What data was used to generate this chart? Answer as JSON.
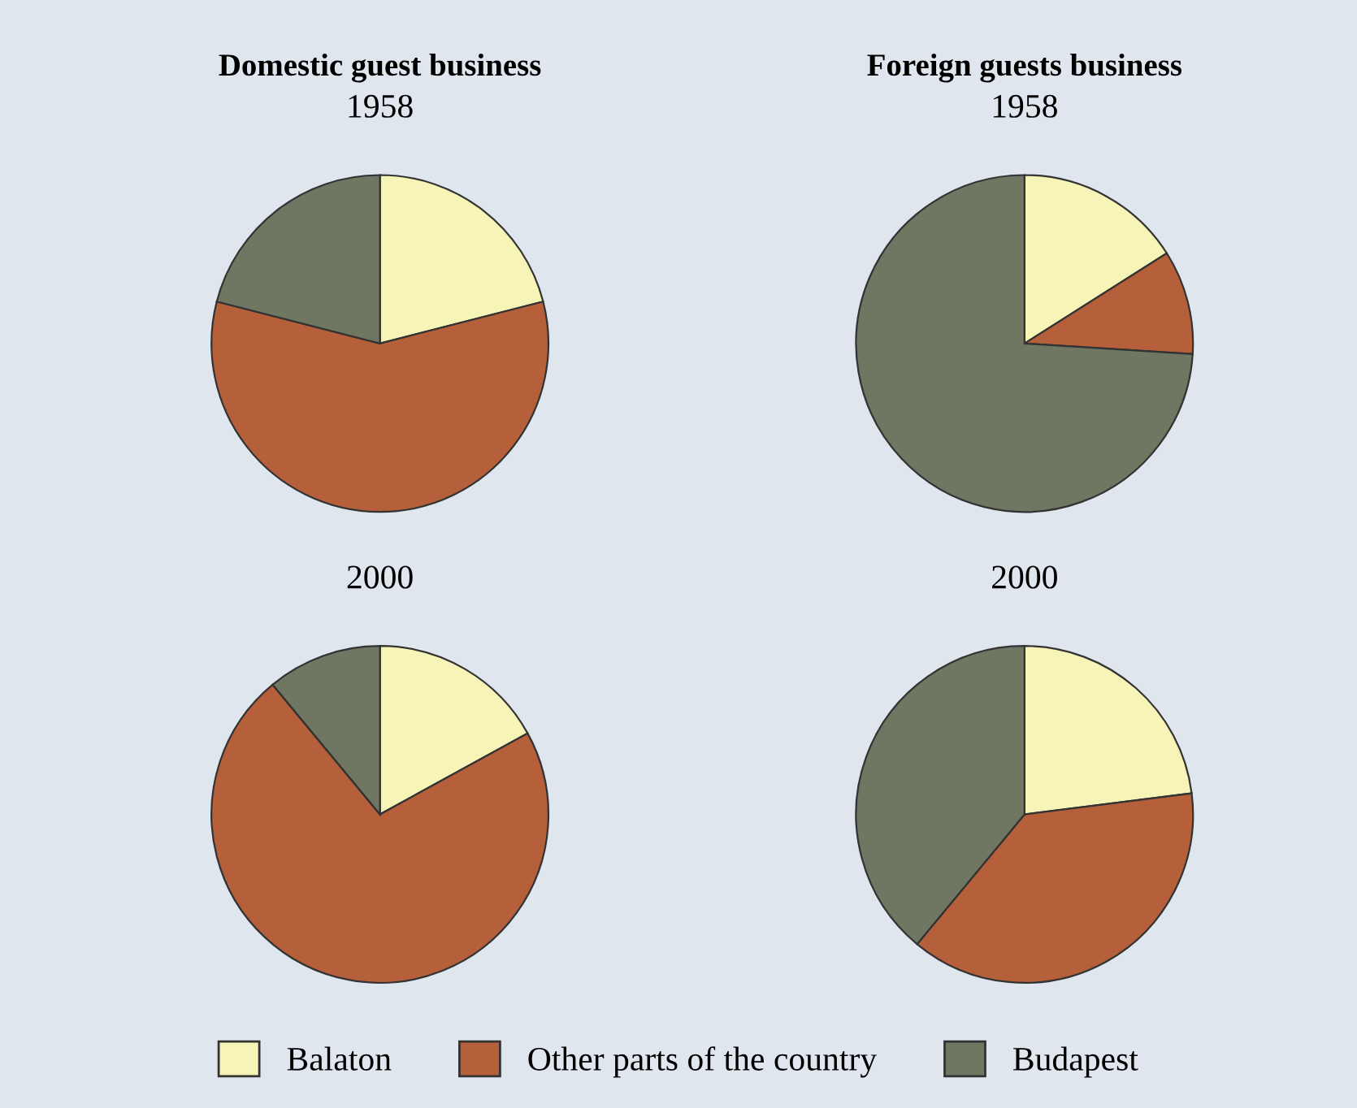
{
  "chart_data": [
    {
      "type": "pie",
      "title": "Domestic guest business",
      "subtitle": "1958",
      "categories": [
        "Balaton",
        "Other parts of the country",
        "Budapest"
      ],
      "values": [
        21,
        58,
        21
      ],
      "colors": [
        "#f7f4b8",
        "#b5603b",
        "#6f7662"
      ],
      "legend": "bottom"
    },
    {
      "type": "pie",
      "title": "Foreign guests business",
      "subtitle": "1958",
      "categories": [
        null,
        null,
        null
      ],
      "values": [
        16,
        10,
        74
      ],
      "colors": [
        "#f7f4b8",
        "#b5603b",
        "#6f7662"
      ]
    },
    {
      "type": "pie",
      "title": "2000",
      "categories": [
        null,
        null,
        null
      ],
      "values": [
        17,
        72,
        11
      ],
      "colors": [
        "#f7f4b8",
        "#b5603b",
        "#6f7662"
      ]
    },
    {
      "type": "pie",
      "title": "2000",
      "categories": [
        null,
        null,
        null
      ],
      "values": [
        23,
        38,
        39
      ],
      "colors": [
        "#f7f4b8",
        "#b5603b",
        "#6f7662"
      ]
    }
  ]
}
